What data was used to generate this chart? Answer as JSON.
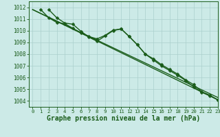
{
  "title": "Graphe pression niveau de la mer (hPa)",
  "xlim": [
    -0.5,
    23
  ],
  "ylim": [
    1003.5,
    1012.5
  ],
  "yticks": [
    1004,
    1005,
    1006,
    1007,
    1008,
    1009,
    1010,
    1011,
    1012
  ],
  "xticks": [
    0,
    1,
    2,
    3,
    4,
    5,
    6,
    7,
    8,
    9,
    10,
    11,
    12,
    13,
    14,
    15,
    16,
    17,
    18,
    19,
    20,
    21,
    22,
    23
  ],
  "bg_color": "#cceae7",
  "grid_color": "#aacfcc",
  "line_color": "#1a5c1a",
  "series1": [
    1011.8,
    1011.1,
    1010.7,
    1010.6,
    1010.2,
    1009.8,
    1009.5,
    1009.3,
    1009.6,
    1010.05,
    1010.15,
    1009.5,
    1008.8,
    1008.0,
    1007.6,
    1007.1,
    1006.7,
    1006.3,
    1005.8,
    1005.4,
    1004.8,
    1004.5,
    1004.1
  ],
  "series2": [
    1011.8,
    1011.1,
    1010.65,
    1010.55,
    1009.95,
    1009.45,
    1009.1,
    1009.55,
    1010.0,
    1010.15,
    1009.5,
    1008.8,
    1008.0,
    1007.5,
    1007.0,
    1006.6,
    1006.2,
    1005.75,
    1005.2,
    1004.75,
    1004.45,
    1004.1
  ],
  "series3_x": [
    0,
    23
  ],
  "series3_y": [
    1011.8,
    1004.1
  ],
  "series4_x": [
    0,
    23
  ],
  "series4_y": [
    1011.8,
    1004.3
  ],
  "marker": "D",
  "marker_size": 2.5,
  "line_width": 1.0,
  "title_fontsize": 7,
  "tick_fontsize": 5.5
}
